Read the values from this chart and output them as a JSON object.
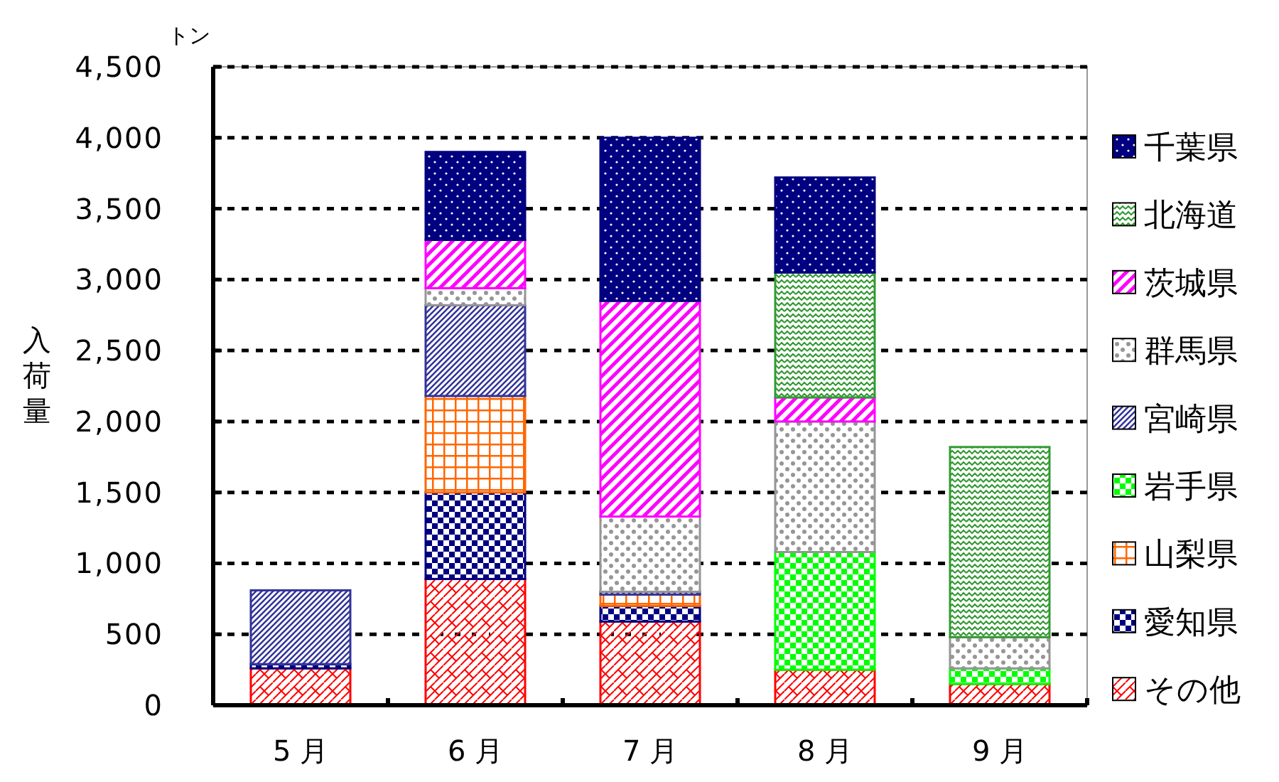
{
  "chart_data": {
    "type": "bar",
    "stacked": true,
    "ylabel": "入荷量",
    "annotations": [
      "トン"
    ],
    "categories": [
      "5 月",
      "6 月",
      "7 月",
      "8 月",
      "9 月"
    ],
    "ylim": [
      0,
      4500
    ],
    "yticks": [
      {
        "value": 0,
        "label": "0"
      },
      {
        "value": 500,
        "label": "500"
      },
      {
        "value": 1000,
        "label": "1,000"
      },
      {
        "value": 1500,
        "label": "1,500"
      },
      {
        "value": 2000,
        "label": "2,000"
      },
      {
        "value": 2500,
        "label": "2,500"
      },
      {
        "value": 3000,
        "label": "3,000"
      },
      {
        "value": 3500,
        "label": "3,500"
      },
      {
        "value": 4000,
        "label": "4,000"
      },
      {
        "value": 4500,
        "label": "4,500"
      }
    ],
    "grid": "y",
    "legend": "right",
    "series": [
      {
        "name": "その他",
        "color": "#ff0000",
        "values": [
          260,
          890,
          590,
          250,
          150
        ]
      },
      {
        "name": "愛知県",
        "color": "#000080",
        "values": [
          30,
          610,
          110,
          null,
          null
        ]
      },
      {
        "name": "山梨県",
        "color": "#ff6600",
        "values": [
          null,
          680,
          80,
          null,
          null
        ]
      },
      {
        "name": "岩手県",
        "color": "#00ff00",
        "values": [
          null,
          null,
          null,
          830,
          110
        ]
      },
      {
        "name": "宮崎県",
        "color": "#333399",
        "values": [
          520,
          640,
          20,
          null,
          null
        ]
      },
      {
        "name": "群馬県",
        "color": "#969696",
        "values": [
          null,
          120,
          530,
          920,
          220
        ]
      },
      {
        "name": "茨城県",
        "color": "#ff00ff",
        "values": [
          null,
          340,
          1520,
          170,
          null
        ]
      },
      {
        "name": "北海道",
        "color": "#339933",
        "values": [
          null,
          null,
          null,
          880,
          1340
        ]
      },
      {
        "name": "千葉県",
        "color": "#000080",
        "values": [
          null,
          620,
          1150,
          670,
          null
        ]
      }
    ]
  }
}
